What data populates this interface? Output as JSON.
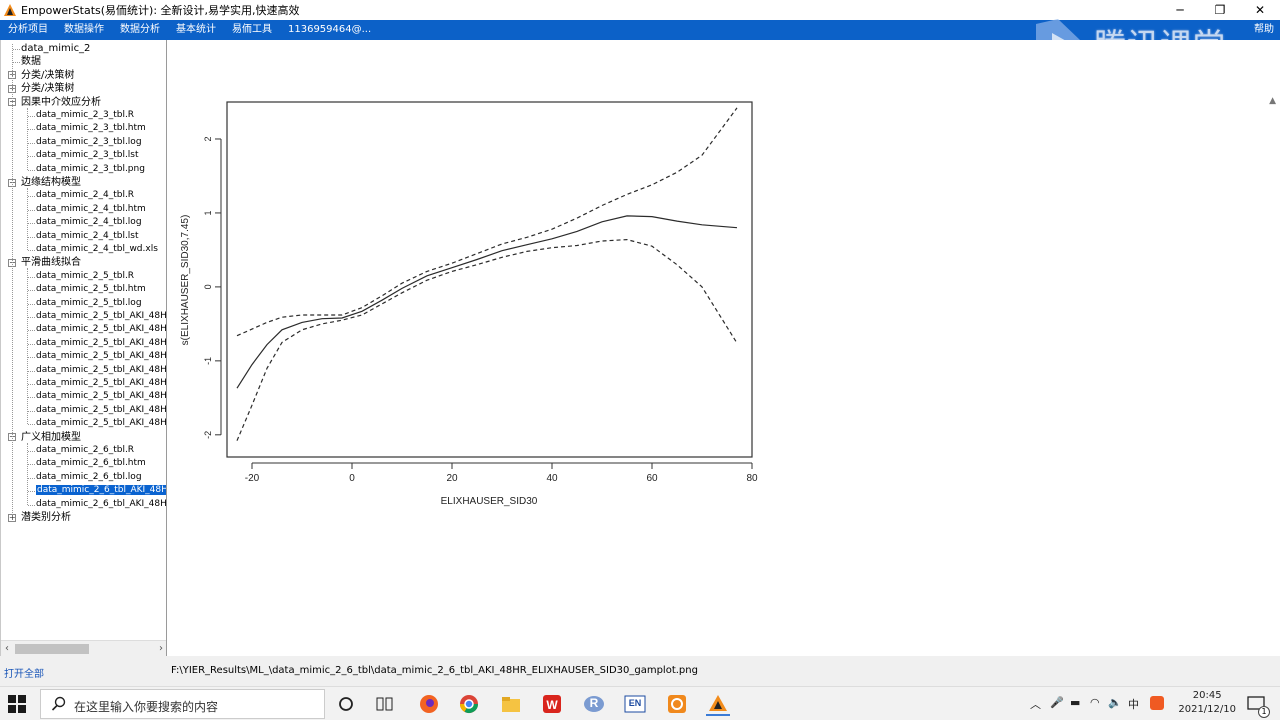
{
  "window": {
    "title": "EmpowerStats(易侕统计): 全新设计,易学实用,快速高效",
    "controls": [
      "─",
      "❐",
      "✕"
    ]
  },
  "menu": {
    "items": [
      "分析项目",
      "数据操作",
      "数据分析",
      "基本统计",
      "易侕工具",
      "1136959464@..."
    ],
    "help": "帮助"
  },
  "watermark": {
    "text": "腾讯课堂"
  },
  "tree": {
    "rows": [
      {
        "label": "data_mimic_2",
        "level": 0
      },
      {
        "label": "数据",
        "level": 0
      },
      {
        "label": "分类/决策树",
        "level": 0,
        "exp": "+"
      },
      {
        "label": "分类/决策树",
        "level": 0,
        "exp": "+"
      },
      {
        "label": "因果中介效应分析",
        "level": 0,
        "exp": "−"
      },
      {
        "label": "data_mimic_2_3_tbl.R",
        "level": 1
      },
      {
        "label": "data_mimic_2_3_tbl.htm",
        "level": 1
      },
      {
        "label": "data_mimic_2_3_tbl.log",
        "level": 1
      },
      {
        "label": "data_mimic_2_3_tbl.lst",
        "level": 1
      },
      {
        "label": "data_mimic_2_3_tbl.png",
        "level": 1
      },
      {
        "label": "边缘结构模型",
        "level": 0,
        "exp": "−"
      },
      {
        "label": "data_mimic_2_4_tbl.R",
        "level": 1
      },
      {
        "label": "data_mimic_2_4_tbl.htm",
        "level": 1
      },
      {
        "label": "data_mimic_2_4_tbl.log",
        "level": 1
      },
      {
        "label": "data_mimic_2_4_tbl.lst",
        "level": 1
      },
      {
        "label": "data_mimic_2_4_tbl_wd.xls",
        "level": 1
      },
      {
        "label": "平滑曲线拟合",
        "level": 0,
        "exp": "−"
      },
      {
        "label": "data_mimic_2_5_tbl.R",
        "level": 1
      },
      {
        "label": "data_mimic_2_5_tbl.htm",
        "level": 1
      },
      {
        "label": "data_mimic_2_5_tbl.log",
        "level": 1
      },
      {
        "label": "data_mimic_2_5_tbl_AKI_48HR_",
        "level": 1
      },
      {
        "label": "data_mimic_2_5_tbl_AKI_48HR_",
        "level": 1
      },
      {
        "label": "data_mimic_2_5_tbl_AKI_48HR_",
        "level": 1
      },
      {
        "label": "data_mimic_2_5_tbl_AKI_48HR_",
        "level": 1
      },
      {
        "label": "data_mimic_2_5_tbl_AKI_48HR_",
        "level": 1
      },
      {
        "label": "data_mimic_2_5_tbl_AKI_48HR_",
        "level": 1
      },
      {
        "label": "data_mimic_2_5_tbl_AKI_48HR_",
        "level": 1
      },
      {
        "label": "data_mimic_2_5_tbl_AKI_48HR_",
        "level": 1
      },
      {
        "label": "data_mimic_2_5_tbl_AKI_48HR_",
        "level": 1
      },
      {
        "label": "广义相加模型",
        "level": 0,
        "exp": "−"
      },
      {
        "label": "data_mimic_2_6_tbl.R",
        "level": 1
      },
      {
        "label": "data_mimic_2_6_tbl.htm",
        "level": 1
      },
      {
        "label": "data_mimic_2_6_tbl.log",
        "level": 1
      },
      {
        "label": "data_mimic_2_6_tbl_AKI_48HR",
        "level": 1,
        "selected": true
      },
      {
        "label": "data_mimic_2_6_tbl_AKI_48HR_",
        "level": 1
      },
      {
        "label": "潜类别分析",
        "level": 0,
        "exp": "+"
      }
    ]
  },
  "chart_data": {
    "type": "line",
    "xlabel": "ELIXHAUSER_SID30",
    "ylabel": "s(ELIXHAUSER_SID30,7.45)",
    "xlim": [
      -25,
      80
    ],
    "ylim": [
      -2.3,
      2.5
    ],
    "xticks": [
      -20,
      0,
      20,
      40,
      60,
      80
    ],
    "yticks": [
      -2,
      -1,
      0,
      1,
      2
    ],
    "grid": false,
    "series": [
      {
        "style": "solid",
        "x": [
          -23,
          -20,
          -17,
          -14,
          -10,
          -6,
          -2,
          2,
          6,
          10,
          15,
          20,
          25,
          30,
          35,
          40,
          45,
          50,
          55,
          60,
          65,
          70,
          77
        ],
        "values": [
          -1.37,
          -1.05,
          -0.78,
          -0.58,
          -0.48,
          -0.43,
          -0.42,
          -0.33,
          -0.18,
          -0.02,
          0.15,
          0.26,
          0.37,
          0.49,
          0.57,
          0.65,
          0.75,
          0.88,
          0.96,
          0.95,
          0.89,
          0.84,
          0.8
        ]
      },
      {
        "style": "dashed",
        "x": [
          -23,
          -20,
          -17,
          -14,
          -10,
          -6,
          -2,
          2,
          6,
          10,
          15,
          20,
          25,
          30,
          35,
          40,
          45,
          50,
          55,
          60,
          65,
          70,
          77
        ],
        "values": [
          -0.66,
          -0.57,
          -0.48,
          -0.41,
          -0.38,
          -0.38,
          -0.38,
          -0.28,
          -0.12,
          0.05,
          0.21,
          0.32,
          0.45,
          0.58,
          0.67,
          0.78,
          0.93,
          1.1,
          1.25,
          1.38,
          1.55,
          1.78,
          2.42
        ]
      },
      {
        "style": "dashed",
        "x": [
          -23,
          -20,
          -17,
          -14,
          -10,
          -6,
          -2,
          2,
          6,
          10,
          15,
          20,
          25,
          30,
          35,
          40,
          45,
          50,
          55,
          60,
          65,
          70,
          77
        ],
        "values": [
          -2.08,
          -1.6,
          -1.1,
          -0.75,
          -0.58,
          -0.5,
          -0.45,
          -0.38,
          -0.23,
          -0.08,
          0.09,
          0.21,
          0.3,
          0.4,
          0.48,
          0.53,
          0.56,
          0.62,
          0.64,
          0.55,
          0.3,
          0.0,
          -0.76
        ]
      }
    ]
  },
  "status": {
    "left": "打开全部",
    "path": "F:\\YIER_Results\\ML_\\data_mimic_2_6_tbl\\data_mimic_2_6_tbl_AKI_48HR_ELIXHAUSER_SID30_gamplot.png"
  },
  "taskbar": {
    "search_placeholder": "在这里输入你要搜索的内容",
    "time": "20:45",
    "date": "2021/12/10",
    "lang": "中",
    "notif_count": "1",
    "app_r": "R",
    "app_en": "EN"
  }
}
